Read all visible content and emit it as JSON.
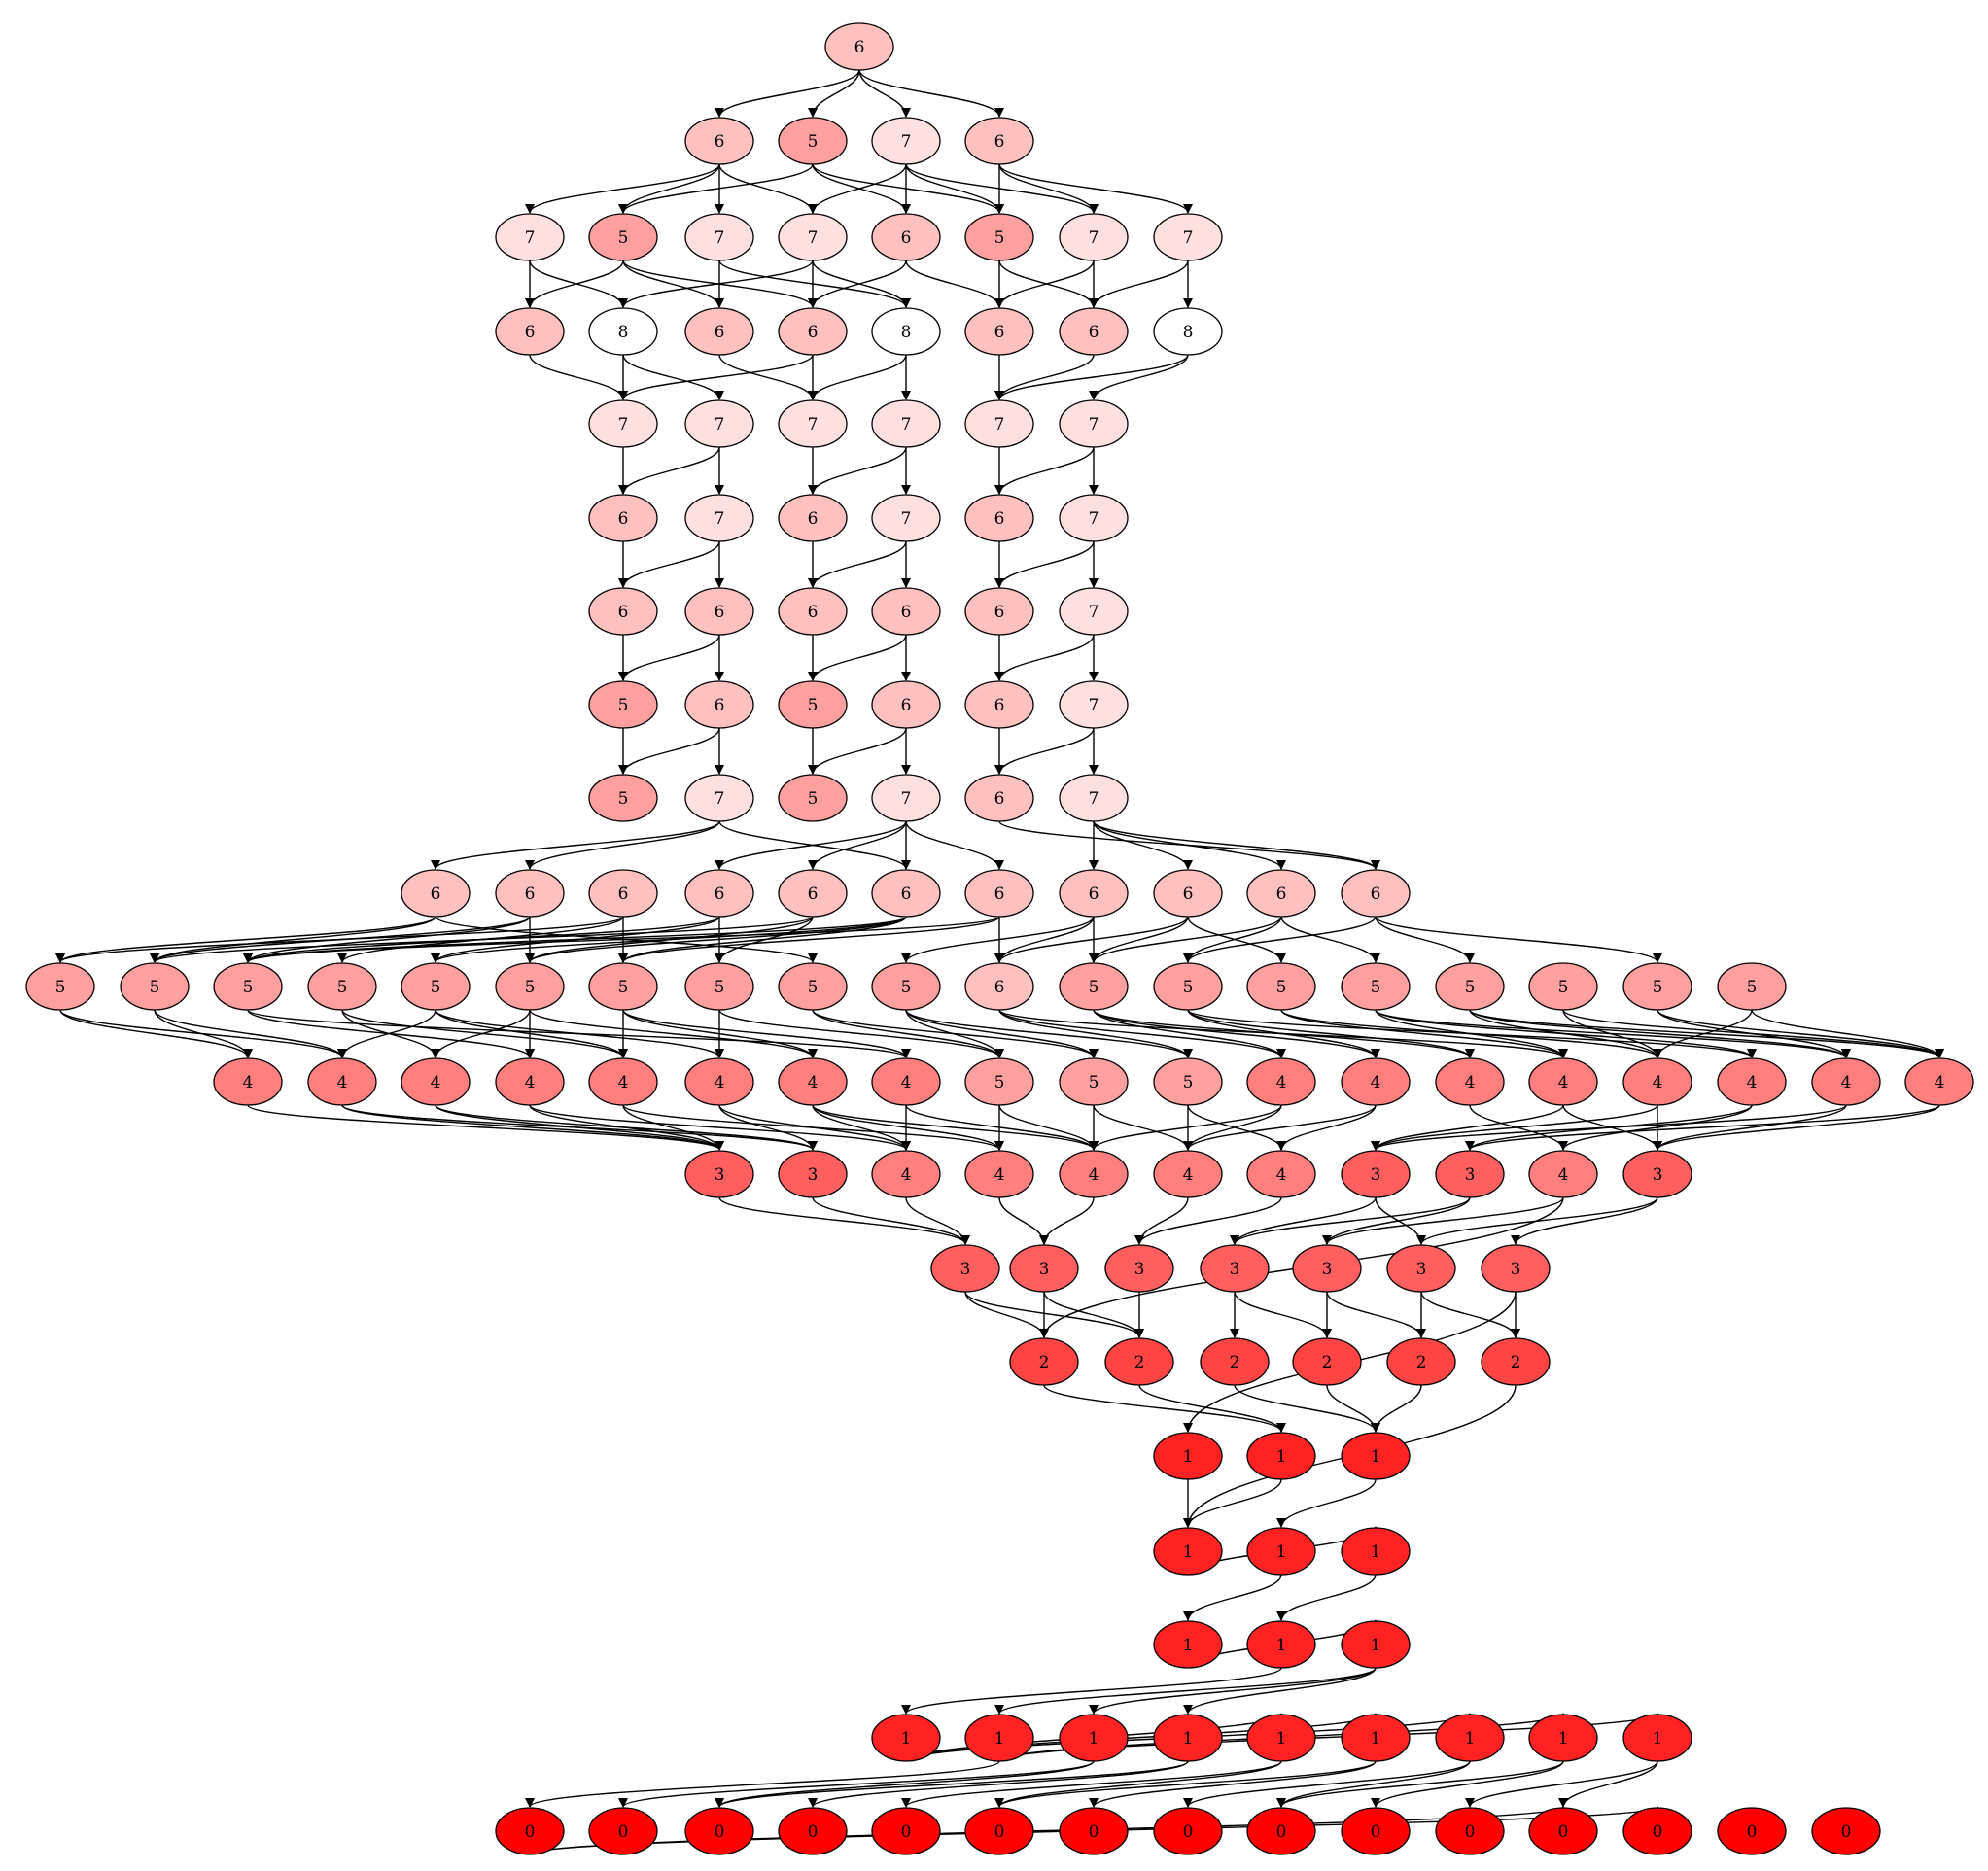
{
  "graph": {
    "type": "directed-acyclic-graph",
    "fill_colors": {
      "0": "#ff0000",
      "1": "#ff2222",
      "2": "#ff4444",
      "3": "#ff5f5f",
      "4": "#ff7f7f",
      "5": "#ffa0a0",
      "6": "#ffc0c0",
      "7": "#ffe0e0",
      "8": "#ffffff"
    },
    "nodes": [
      "6",
      "6",
      "5",
      "7",
      "6",
      "7",
      "5",
      "7",
      "7",
      "6",
      "5",
      "7",
      "7",
      "6",
      "8",
      "6",
      "6",
      "8",
      "6",
      "6",
      "8",
      "7",
      "7",
      "7",
      "7",
      "7",
      "7",
      "6",
      "7",
      "6",
      "7",
      "6",
      "7",
      "6",
      "6",
      "6",
      "6",
      "6",
      "7",
      "5",
      "6",
      "5",
      "6",
      "6",
      "7",
      "5",
      "7",
      "5",
      "7",
      "6",
      "7",
      "6",
      "6",
      "6",
      "6",
      "6",
      "6",
      "6",
      "6",
      "6",
      "6",
      "6",
      "5",
      "5",
      "5",
      "5",
      "5",
      "5",
      "5",
      "5",
      "5",
      "5",
      "6",
      "5",
      "5",
      "5",
      "5",
      "5",
      "5",
      "5",
      "5",
      "4",
      "4",
      "4",
      "4",
      "4",
      "4",
      "4",
      "4",
      "5",
      "5",
      "5",
      "4",
      "4",
      "4",
      "4",
      "4",
      "4",
      "4",
      "4",
      "3",
      "3",
      "4",
      "4",
      "4",
      "4",
      "4",
      "3",
      "3",
      "4",
      "3",
      "3",
      "3",
      "3",
      "3",
      "3",
      "3",
      "3",
      "2",
      "2",
      "2",
      "2",
      "2",
      "2",
      "1",
      "1",
      "1",
      "1",
      "1",
      "1",
      "1",
      "1",
      "1",
      "1",
      "1",
      "1",
      "1",
      "1",
      "1",
      "1",
      "1",
      "1",
      "0",
      "0",
      "0",
      "0",
      "0",
      "0",
      "0",
      "0",
      "0",
      "0",
      "0",
      "0",
      "0",
      "0",
      "0"
    ],
    "edges": [
      [
        0,
        1
      ],
      [
        0,
        2
      ],
      [
        0,
        3
      ],
      [
        0,
        4
      ],
      [
        1,
        5
      ],
      [
        1,
        6
      ],
      [
        1,
        7
      ],
      [
        1,
        8
      ],
      [
        2,
        6
      ],
      [
        2,
        9
      ],
      [
        2,
        10
      ],
      [
        3,
        8
      ],
      [
        3,
        9
      ],
      [
        3,
        10
      ],
      [
        3,
        11
      ],
      [
        4,
        10
      ],
      [
        4,
        11
      ],
      [
        4,
        12
      ],
      [
        5,
        13
      ],
      [
        5,
        14
      ],
      [
        6,
        13
      ],
      [
        6,
        15
      ],
      [
        6,
        16
      ],
      [
        7,
        15
      ],
      [
        7,
        17
      ],
      [
        8,
        14
      ],
      [
        8,
        16
      ],
      [
        8,
        17
      ],
      [
        9,
        16
      ],
      [
        9,
        18
      ],
      [
        10,
        18
      ],
      [
        10,
        19
      ],
      [
        11,
        18
      ],
      [
        11,
        19
      ],
      [
        12,
        19
      ],
      [
        12,
        20
      ],
      [
        13,
        21
      ],
      [
        14,
        21
      ],
      [
        14,
        22
      ],
      [
        16,
        21
      ],
      [
        15,
        23
      ],
      [
        16,
        23
      ],
      [
        17,
        23
      ],
      [
        17,
        24
      ],
      [
        18,
        25
      ],
      [
        19,
        25
      ],
      [
        20,
        25
      ],
      [
        20,
        26
      ],
      [
        21,
        27
      ],
      [
        22,
        27
      ],
      [
        22,
        28
      ],
      [
        23,
        29
      ],
      [
        24,
        29
      ],
      [
        24,
        30
      ],
      [
        25,
        31
      ],
      [
        26,
        31
      ],
      [
        26,
        32
      ],
      [
        27,
        33
      ],
      [
        28,
        33
      ],
      [
        28,
        34
      ],
      [
        29,
        35
      ],
      [
        30,
        35
      ],
      [
        30,
        36
      ],
      [
        31,
        37
      ],
      [
        32,
        37
      ],
      [
        32,
        38
      ],
      [
        33,
        39
      ],
      [
        34,
        39
      ],
      [
        34,
        40
      ],
      [
        35,
        41
      ],
      [
        36,
        41
      ],
      [
        36,
        42
      ],
      [
        37,
        43
      ],
      [
        38,
        43
      ],
      [
        38,
        44
      ],
      [
        39,
        45
      ],
      [
        40,
        45
      ],
      [
        40,
        46
      ],
      [
        41,
        47
      ],
      [
        42,
        47
      ],
      [
        42,
        48
      ],
      [
        43,
        49
      ],
      [
        44,
        49
      ],
      [
        44,
        50
      ],
      [
        46,
        51
      ],
      [
        46,
        52
      ],
      [
        46,
        56
      ],
      [
        48,
        57
      ],
      [
        48,
        54
      ],
      [
        48,
        55
      ],
      [
        48,
        56
      ],
      [
        49,
        61
      ],
      [
        50,
        59
      ],
      [
        50,
        58
      ],
      [
        50,
        60
      ],
      [
        50,
        61
      ],
      [
        51,
        62
      ],
      [
        51,
        63
      ],
      [
        51,
        70
      ],
      [
        52,
        63
      ],
      [
        52,
        64
      ],
      [
        52,
        67
      ],
      [
        53,
        62
      ],
      [
        53,
        65
      ],
      [
        53,
        68
      ],
      [
        54,
        64
      ],
      [
        54,
        66
      ],
      [
        54,
        69
      ],
      [
        55,
        63
      ],
      [
        55,
        67
      ],
      [
        55,
        69
      ],
      [
        56,
        64
      ],
      [
        56,
        66
      ],
      [
        56,
        67
      ],
      [
        56,
        68
      ],
      [
        57,
        64
      ],
      [
        57,
        68
      ],
      [
        57,
        72
      ],
      [
        58,
        71
      ],
      [
        58,
        72
      ],
      [
        58,
        73
      ],
      [
        59,
        72
      ],
      [
        59,
        73
      ],
      [
        59,
        75
      ],
      [
        60,
        73
      ],
      [
        60,
        74
      ],
      [
        60,
        76
      ],
      [
        61,
        74
      ],
      [
        61,
        77
      ],
      [
        61,
        79
      ],
      [
        62,
        81
      ],
      [
        62,
        82
      ],
      [
        63,
        81
      ],
      [
        63,
        82
      ],
      [
        64,
        84
      ],
      [
        64,
        88
      ],
      [
        65,
        83
      ],
      [
        65,
        85
      ],
      [
        66,
        82
      ],
      [
        66,
        85
      ],
      [
        66,
        86
      ],
      [
        67,
        83
      ],
      [
        67,
        84
      ],
      [
        67,
        87
      ],
      [
        68,
        85
      ],
      [
        68,
        87
      ],
      [
        68,
        88
      ],
      [
        69,
        89
      ],
      [
        69,
        86
      ],
      [
        70,
        89
      ],
      [
        70,
        90
      ],
      [
        71,
        89
      ],
      [
        71,
        90
      ],
      [
        71,
        91
      ],
      [
        72,
        91
      ],
      [
        72,
        92
      ],
      [
        72,
        95
      ],
      [
        73,
        92
      ],
      [
        73,
        93
      ],
      [
        73,
        94
      ],
      [
        74,
        93
      ],
      [
        74,
        94
      ],
      [
        74,
        97
      ],
      [
        75,
        95
      ],
      [
        75,
        96
      ],
      [
        76,
        95
      ],
      [
        76,
        97
      ],
      [
        76,
        98
      ],
      [
        77,
        96
      ],
      [
        77,
        98
      ],
      [
        77,
        99
      ],
      [
        78,
        96
      ],
      [
        78,
        99
      ],
      [
        79,
        98
      ],
      [
        79,
        99
      ],
      [
        80,
        96
      ],
      [
        80,
        99
      ],
      [
        81,
        100
      ],
      [
        82,
        100
      ],
      [
        82,
        101
      ],
      [
        83,
        100
      ],
      [
        83,
        101
      ],
      [
        84,
        100
      ],
      [
        84,
        102
      ],
      [
        85,
        100
      ],
      [
        85,
        103
      ],
      [
        86,
        101
      ],
      [
        86,
        102
      ],
      [
        87,
        102
      ],
      [
        87,
        103
      ],
      [
        87,
        104
      ],
      [
        88,
        102
      ],
      [
        88,
        104
      ],
      [
        89,
        103
      ],
      [
        89,
        104
      ],
      [
        90,
        104
      ],
      [
        90,
        105
      ],
      [
        91,
        105
      ],
      [
        91,
        106
      ],
      [
        92,
        104
      ],
      [
        92,
        105
      ],
      [
        93,
        105
      ],
      [
        93,
        106
      ],
      [
        94,
        109
      ],
      [
        95,
        107
      ],
      [
        95,
        110
      ],
      [
        96,
        107
      ],
      [
        96,
        110
      ],
      [
        97,
        108
      ],
      [
        97,
        109
      ],
      [
        98,
        107
      ],
      [
        98,
        110
      ],
      [
        99,
        108
      ],
      [
        99,
        110
      ],
      [
        100,
        111
      ],
      [
        101,
        111
      ],
      [
        102,
        111
      ],
      [
        103,
        112
      ],
      [
        104,
        112
      ],
      [
        105,
        113
      ],
      [
        106,
        113
      ],
      [
        107,
        114
      ],
      [
        107,
        116
      ],
      [
        108,
        114
      ],
      [
        108,
        115
      ],
      [
        109,
        115
      ],
      [
        109,
        118
      ],
      [
        110,
        116
      ],
      [
        110,
        117
      ],
      [
        111,
        118
      ],
      [
        111,
        119
      ],
      [
        112,
        118
      ],
      [
        112,
        119
      ],
      [
        113,
        119
      ],
      [
        114,
        120
      ],
      [
        114,
        121
      ],
      [
        115,
        121
      ],
      [
        115,
        122
      ],
      [
        116,
        122
      ],
      [
        116,
        123
      ],
      [
        117,
        123
      ],
      [
        117,
        124
      ],
      [
        118,
        125
      ],
      [
        119,
        125
      ],
      [
        120,
        126
      ],
      [
        121,
        126
      ],
      [
        122,
        126
      ],
      [
        123,
        127
      ],
      [
        124,
        127
      ],
      [
        125,
        127
      ],
      [
        126,
        128
      ],
      [
        127,
        129
      ],
      [
        128,
        130
      ],
      [
        129,
        131
      ],
      [
        130,
        132
      ],
      [
        131,
        133
      ],
      [
        132,
        134
      ],
      [
        132,
        135
      ],
      [
        132,
        136
      ],
      [
        133,
        137
      ],
      [
        133,
        138
      ],
      [
        133,
        139
      ],
      [
        134,
        140
      ],
      [
        134,
        141
      ],
      [
        134,
        142
      ],
      [
        135,
        143
      ],
      [
        135,
        144
      ],
      [
        136,
        144
      ],
      [
        136,
        145
      ],
      [
        137,
        146
      ],
      [
        137,
        147
      ],
      [
        138,
        147
      ],
      [
        138,
        148
      ],
      [
        139,
        149
      ],
      [
        139,
        150
      ],
      [
        140,
        150
      ],
      [
        140,
        151
      ],
      [
        141,
        152
      ],
      [
        141,
        153
      ],
      [
        142,
        153
      ],
      [
        142,
        154
      ]
    ]
  }
}
